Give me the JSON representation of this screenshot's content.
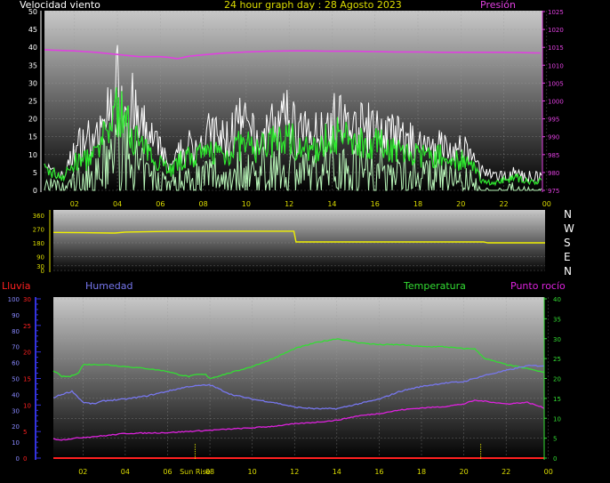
{
  "header": {
    "wind_title": "Velocidad viento",
    "graph_title": "24 hour graph day : 28 Agosto 2023",
    "pressure_title": "Presión"
  },
  "compass": [
    "N",
    "W",
    "S",
    "E",
    "N"
  ],
  "lower_header": {
    "rain": "Lluvia",
    "humidity": "Humedad",
    "temperature": "Temperatura",
    "dew_point": "Punto rocío"
  },
  "colors": {
    "wind_gust": "#ffffff",
    "wind_speed": "#2ee82e",
    "wind_light": "#b8f5b8",
    "pressure": "#e040e0",
    "direction": "#f0f000",
    "humidity": "#7777ee",
    "temperature": "#33dd33",
    "dew_point": "#dd22dd",
    "rain": "#ff2020",
    "sun_markers": "#dddd00"
  },
  "chart_data": [
    {
      "name": "wind-pressure",
      "type": "line",
      "xlabel": "",
      "x_ticks": [
        "02",
        "04",
        "06",
        "08",
        "10",
        "12",
        "14",
        "16",
        "18",
        "20",
        "22",
        "00"
      ],
      "x_range": [
        0.6,
        23.8
      ],
      "y_left_ticks": [
        0,
        5,
        10,
        15,
        20,
        25,
        30,
        35,
        40,
        45,
        50
      ],
      "y_left_range": [
        0,
        50
      ],
      "y_right_ticks": [
        975,
        980,
        985,
        990,
        995,
        1000,
        1005,
        1010,
        1015,
        1020,
        1025
      ],
      "y_right_range": [
        975,
        1025
      ],
      "series": [
        {
          "name": "Velocidad viento",
          "axis": "left",
          "style": "gust",
          "x": [
            0.6,
            1,
            1.5,
            2,
            2.5,
            3,
            3.5,
            4,
            4.5,
            5,
            5.5,
            6,
            6.5,
            7,
            7.5,
            8,
            8.5,
            9,
            9.5,
            10,
            10.5,
            11,
            11.5,
            12,
            12.5,
            13,
            13.5,
            14,
            14.5,
            15,
            15.5,
            16,
            16.5,
            17,
            17.5,
            18,
            18.5,
            19,
            19.5,
            20,
            20.5,
            21,
            21.5,
            22,
            22.5,
            23,
            23.5,
            23.8
          ],
          "values": [
            9,
            6,
            5,
            14,
            20,
            17,
            26,
            38,
            34,
            24,
            20,
            14,
            7,
            15,
            16,
            19,
            21,
            18,
            24,
            23,
            18,
            22,
            24,
            26,
            22,
            19,
            23,
            26,
            25,
            22,
            23,
            22,
            20,
            20,
            18,
            16,
            17,
            17,
            14,
            15,
            12,
            7,
            5,
            5,
            6,
            5,
            5,
            5
          ]
        },
        {
          "name": "Velocidad viento media",
          "axis": "left",
          "style": "avg",
          "x": [
            0.6,
            1,
            1.5,
            2,
            2.5,
            3,
            3.5,
            4,
            4.5,
            5,
            5.5,
            6,
            6.5,
            7,
            7.5,
            8,
            8.5,
            9,
            9.5,
            10,
            10.5,
            11,
            11.5,
            12,
            12.5,
            13,
            13.5,
            14,
            14.5,
            15,
            15.5,
            16,
            16.5,
            17,
            17.5,
            18,
            18.5,
            19,
            19.5,
            20,
            20.5,
            21,
            21.5,
            22,
            22.5,
            23,
            23.5,
            23.8
          ],
          "values": [
            6,
            5,
            4,
            8,
            9,
            10,
            17,
            24,
            19,
            14,
            10,
            9,
            6,
            9,
            10,
            10,
            12,
            10,
            13,
            13,
            12,
            14,
            14,
            16,
            13,
            11,
            13,
            17,
            15,
            15,
            14,
            14,
            13,
            12,
            11,
            10,
            10,
            10,
            9,
            9,
            7,
            3,
            2,
            3,
            4,
            3,
            2,
            3
          ]
        },
        {
          "name": "Presión",
          "axis": "right",
          "style": "pressure",
          "x": [
            0.6,
            1,
            2,
            3,
            4,
            5,
            6,
            6.4,
            6.8,
            7.3,
            8,
            9,
            10,
            11,
            12,
            13,
            14,
            15,
            16,
            17,
            18,
            19,
            20,
            21,
            22,
            23,
            23.8
          ],
          "values": [
            1014.3,
            1014.2,
            1014.0,
            1013.6,
            1013.0,
            1012.4,
            1012.4,
            1012.2,
            1011.8,
            1012.5,
            1012.9,
            1013.4,
            1013.7,
            1013.9,
            1014.0,
            1014.0,
            1013.9,
            1013.9,
            1013.8,
            1013.7,
            1013.7,
            1013.6,
            1013.6,
            1013.6,
            1013.6,
            1013.5,
            1013.4
          ]
        }
      ]
    },
    {
      "name": "wind-direction",
      "type": "line",
      "x_range": [
        0.6,
        23.8
      ],
      "y_ticks": [
        0,
        30,
        90,
        180,
        270,
        360
      ],
      "y_range": [
        0,
        360
      ],
      "series": [
        {
          "name": "Dirección viento",
          "x": [
            0.6,
            2,
            3.5,
            4,
            6,
            8,
            10,
            11.95,
            12.05,
            14,
            16,
            18,
            20,
            20.9,
            21.1,
            23.8
          ],
          "values": [
            248,
            246,
            244,
            250,
            255,
            256,
            256,
            256,
            186,
            186,
            186,
            186,
            186,
            186,
            180,
            180
          ]
        }
      ]
    },
    {
      "name": "rain-humidity-temperature",
      "type": "line",
      "x_ticks": [
        "02",
        "04",
        "06",
        "08",
        "10",
        "12",
        "14",
        "16",
        "18",
        "20",
        "22",
        "00"
      ],
      "x_range": [
        0.6,
        23.8
      ],
      "y_left_rain_ticks": [
        0,
        5,
        10,
        15,
        20,
        25,
        30
      ],
      "y_left_rain_range": [
        0,
        30
      ],
      "y_left_humidity_ticks": [
        0,
        10,
        20,
        30,
        40,
        50,
        60,
        70,
        80,
        90,
        100
      ],
      "y_left_humidity_range": [
        0,
        100
      ],
      "y_right_ticks": [
        0,
        5,
        10,
        15,
        20,
        25,
        30,
        35,
        40
      ],
      "y_right_range": [
        0,
        40
      ],
      "annotations": [
        {
          "label": "Sun Rise",
          "x": 7.3
        },
        {
          "label": "",
          "x": 20.8
        }
      ],
      "series": [
        {
          "name": "Temperatura",
          "axis": "right",
          "x": [
            0.6,
            1,
            1.4,
            1.8,
            2,
            3,
            4,
            5,
            6,
            6.5,
            7,
            7.4,
            7.8,
            8,
            9,
            10,
            11,
            12,
            13,
            14,
            15,
            16,
            17,
            18,
            19,
            20,
            20.5,
            21,
            22,
            23,
            23.8
          ],
          "values": [
            22,
            20.5,
            20.5,
            21.5,
            23.5,
            23.5,
            23,
            22.5,
            21.8,
            21,
            20.5,
            21,
            21,
            20,
            21.5,
            23,
            25,
            27.5,
            29,
            30,
            29,
            28.5,
            28.5,
            28,
            28,
            27.5,
            27.5,
            25,
            23.5,
            22.5,
            21.5
          ]
        },
        {
          "name": "Humedad",
          "axis": "humidity",
          "x": [
            0.6,
            1,
            1.5,
            2,
            2.5,
            3,
            4,
            5,
            6,
            7,
            8,
            9,
            10,
            11,
            12,
            13,
            14,
            15,
            16,
            17,
            18,
            19,
            20,
            21,
            22,
            23,
            23.8
          ],
          "values": [
            38,
            40,
            42,
            35,
            34,
            36,
            37,
            39,
            42,
            45,
            46,
            40,
            37,
            35,
            32,
            31,
            31,
            34,
            37,
            42,
            45,
            47,
            48,
            52,
            55,
            58,
            58
          ]
        },
        {
          "name": "Punto rocío",
          "axis": "right",
          "x": [
            0.6,
            1,
            2,
            3,
            4,
            5,
            6,
            7,
            8,
            9,
            10,
            11,
            12,
            13,
            14,
            15,
            16,
            17,
            18,
            19,
            20,
            20.5,
            21,
            22,
            23,
            23.8
          ],
          "values": [
            4.8,
            4.6,
            5.2,
            5.6,
            6.2,
            6.3,
            6.4,
            6.7,
            7.0,
            7.3,
            7.6,
            8,
            8.6,
            9.0,
            9.5,
            10.6,
            11.2,
            12.1,
            12.6,
            12.9,
            13.6,
            14.5,
            14.3,
            13.6,
            14.0,
            12.6
          ]
        },
        {
          "name": "Lluvia",
          "axis": "rain",
          "x": [
            0.6,
            23.8
          ],
          "values": [
            0,
            0
          ]
        }
      ]
    }
  ]
}
